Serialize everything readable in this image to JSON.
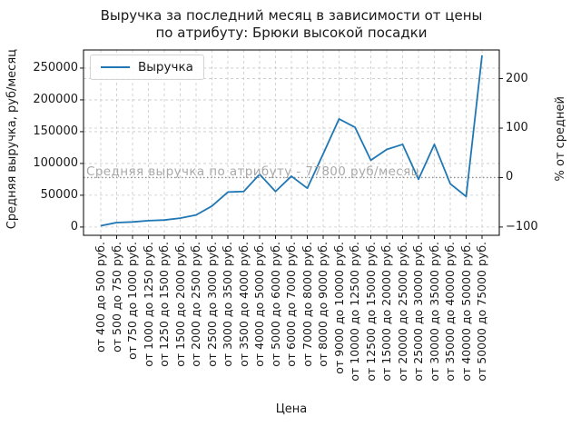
{
  "chart_data": {
    "type": "line",
    "title": "Выручка за последний месяц в зависимости от цены по атрибуту: Брюки высокой посадки",
    "title_line1": "Выручка за последний месяц в зависимости от цены",
    "title_line2": "по атрибуту: Брюки высокой посадки",
    "xlabel": "Цена",
    "ylabel_left": "Средняя выручка, руб/месяц",
    "ylabel_right": "% от средней",
    "grid": true,
    "legend_position": "upper left",
    "categories": [
      "от 400 до 500 руб.",
      "от 500 до 750 руб.",
      "от 750 до 1000 руб.",
      "от 1000 до 1250 руб.",
      "от 1250 до 1500 руб.",
      "от 1500 до 2000 руб.",
      "от 2000 до 2500 руб.",
      "от 2500 до 3000 руб.",
      "от 3000 до 3500 руб.",
      "от 3500 до 4000 руб.",
      "от 4000 до 5000 руб.",
      "от 5000 до 6000 руб.",
      "от 6000 до 7000 руб.",
      "от 7000 до 8000 руб.",
      "от 8000 до 9000 руб.",
      "от 9000 до 10000 руб.",
      "от 10000 до 12500 руб.",
      "от 12500 до 15000 руб.",
      "от 15000 до 20000 руб.",
      "от 20000 до 25000 руб.",
      "от 25000 до 30000 руб.",
      "от 30000 до 35000 руб.",
      "от 35000 до 40000 руб.",
      "от 40000 до 50000 руб.",
      "от 50000 до 75000 руб."
    ],
    "series": [
      {
        "name": "Выручка",
        "values": [
          2000,
          7000,
          8000,
          10000,
          11000,
          14000,
          19000,
          33000,
          55000,
          56000,
          83000,
          56000,
          80000,
          61000,
          115000,
          170000,
          157000,
          105000,
          122000,
          130000,
          75000,
          130000,
          68000,
          48000,
          270000
        ]
      }
    ],
    "left_ticks": [
      0,
      50000,
      100000,
      150000,
      200000,
      250000
    ],
    "right_ticks": [
      -100,
      0,
      100,
      200
    ],
    "ylim_left": [
      -13000,
      278500
    ],
    "mean_annotation": {
      "value": 77800,
      "label": "Средняя выручка по атрибуту - 77800 руб/месяц"
    },
    "colors": {
      "line": "#1f77b4",
      "grid": "#c9c9c9",
      "mean_line": "#8c8c8c",
      "annotation_text": "#a9a9a9",
      "axis": "#000000"
    }
  }
}
